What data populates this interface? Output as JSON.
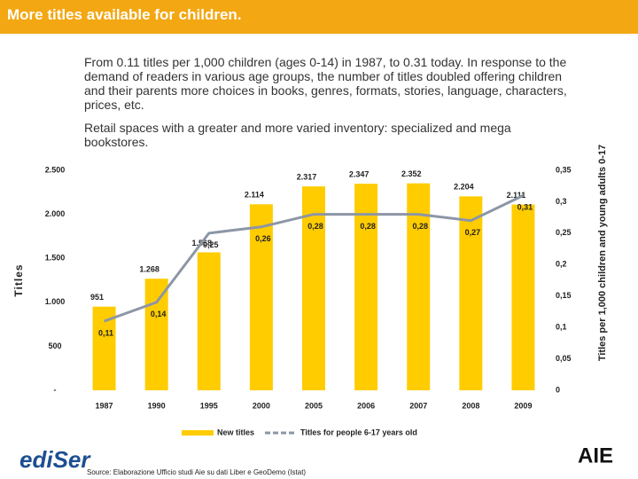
{
  "header": {
    "title": "More titles available for children."
  },
  "paragraphs": [
    "From 0.11 titles per 1,000 children (ages 0-14) in 1987, to 0.31 today. In response to the demand of readers in various age groups, the number of titles doubled offering children and their parents more choices in books, genres, formats, stories, language, characters, prices, etc.",
    "Retail spaces with a greater and more varied inventory: specialized and mega bookstores."
  ],
  "chart_data": {
    "type": "bar-line",
    "y_label": "Titles",
    "y2_label": "Titles per 1,000 children and young adults 0-17",
    "categories": [
      "1987",
      "1990",
      "1995",
      "2000",
      "2005",
      "2006",
      "2007",
      "2008",
      "2009"
    ],
    "series": [
      {
        "name": "New titles",
        "type": "bar",
        "color": "#ffcc00",
        "values": [
          951,
          1268,
          1568,
          2114,
          2317,
          2347,
          2352,
          2204,
          2111
        ],
        "value_labels": [
          "951",
          "1.268",
          "1.568",
          "2.114",
          "2.317",
          "2.347",
          "2.352",
          "2.204",
          "2.111"
        ]
      },
      {
        "name": "Titles for people 6-17 years old",
        "type": "line",
        "axis": "y2",
        "color": "#8c96a6",
        "values": [
          0.11,
          0.14,
          0.25,
          0.26,
          0.28,
          0.28,
          0.28,
          0.27,
          0.31
        ],
        "value_labels": [
          "0,11",
          "0,14",
          "0,25",
          "0,26",
          "0,28",
          "0,28",
          "0,28",
          "0,27",
          "0,31"
        ]
      }
    ],
    "ylim": [
      0,
      2500
    ],
    "yticks": [
      {
        "value": 0,
        "label": "-"
      },
      500,
      {
        "value": 1000,
        "label": "1.000"
      },
      {
        "value": 1500,
        "label": "1.500"
      },
      {
        "value": 2000,
        "label": "2.000"
      },
      {
        "value": 2500,
        "label": "2.500"
      }
    ],
    "y2lim": [
      0,
      0.35
    ],
    "y2ticks": [
      0,
      {
        "value": 0.05,
        "label": "0,05"
      },
      {
        "value": 0.1,
        "label": "0,1"
      },
      {
        "value": 0.15,
        "label": "0,15"
      },
      {
        "value": 0.2,
        "label": "0,2"
      },
      {
        "value": 0.25,
        "label": "0,25"
      },
      {
        "value": 0.3,
        "label": "0,3"
      },
      {
        "value": 0.35,
        "label": "0,35"
      }
    ],
    "legend": "bottom"
  },
  "footer": {
    "source": "Source: Elaborazione Ufficio studi Aie su dati Liber e GeoDemo (Istat)",
    "logo_left": "ediSer",
    "logo_right": "AIE"
  }
}
